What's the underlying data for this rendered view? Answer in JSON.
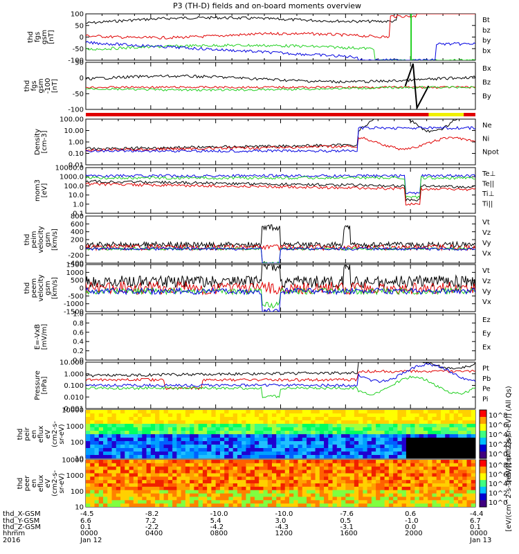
{
  "title": "P3 (TH-D) fields and on-board moments overview",
  "colors": {
    "black": "#000000",
    "red": "#e00000",
    "green": "#20d020",
    "blue": "#0000e0",
    "yellow": "#f0f000"
  },
  "chart_data": [
    {
      "type": "line",
      "name": "fgs_gsm",
      "ylabel_lines": [
        "thd",
        "fgs",
        "gsm",
        "[nT]"
      ],
      "yticks": [
        "100",
        "50",
        "0",
        "-50",
        "-100"
      ],
      "ylim": [
        -100,
        100
      ],
      "legend": [
        {
          "label": "Bt",
          "color": "black"
        },
        {
          "label": "bz",
          "color": "red"
        },
        {
          "label": "by",
          "color": "green"
        },
        {
          "label": "bx",
          "color": "blue"
        }
      ]
    },
    {
      "type": "line",
      "name": "fgs_gse",
      "ylabel_lines": [
        "thd",
        "fgs",
        "gsm",
        "-100",
        "[nT]"
      ],
      "yticks": [
        "50",
        "0",
        "-50",
        "-100"
      ],
      "ylim": [
        -125,
        75
      ],
      "legend": [
        {
          "label": "Bx",
          "color": "black"
        },
        {
          "label": "Bz",
          "color": "red"
        },
        {
          "label": "By",
          "color": "green"
        }
      ]
    },
    {
      "type": "line",
      "name": "density",
      "ylabel_lines": [
        "Density",
        "[cm-3]"
      ],
      "yticks": [
        "100.00",
        "10.00",
        "1.00",
        "0.10",
        "0.01"
      ],
      "scale": "log",
      "legend": [
        {
          "label": "Ne",
          "color": "red"
        },
        {
          "label": "Ni",
          "color": "black"
        },
        {
          "label": "Npot",
          "color": "blue"
        }
      ]
    },
    {
      "type": "line",
      "name": "temperature",
      "ylabel_lines": [
        "mom3",
        "[eV]"
      ],
      "yticks": [
        "10000.0",
        "1000.0",
        "100.0",
        "10.0",
        "1.0",
        "0.1"
      ],
      "scale": "log",
      "legend": [
        {
          "label": "Te⊥",
          "color": "red"
        },
        {
          "label": "Te||",
          "color": "black"
        },
        {
          "label": "Ti⊥",
          "color": "blue"
        },
        {
          "label": "Ti||",
          "color": "green"
        }
      ]
    },
    {
      "type": "line",
      "name": "peim_velocity",
      "ylabel_lines": [
        "thd",
        "peim",
        "velocity",
        "gsm",
        "[km/s]"
      ],
      "yticks": [
        "800",
        "600",
        "400",
        "200",
        "0",
        "-200",
        "-400"
      ],
      "ylim": [
        -400,
        800
      ],
      "legend": [
        {
          "label": "Vt",
          "color": "black"
        },
        {
          "label": "Vz",
          "color": "red"
        },
        {
          "label": "Vy",
          "color": "green"
        },
        {
          "label": "Vx",
          "color": "blue"
        }
      ]
    },
    {
      "type": "line",
      "name": "peem_velocity",
      "ylabel_lines": [
        "thd",
        "peem",
        "velocity",
        "gsm",
        "[km/s]"
      ],
      "yticks": [
        "1500",
        "1000",
        "500",
        "0",
        "-500",
        "-1000",
        "-1500"
      ],
      "ylim": [
        -1500,
        1500
      ],
      "legend": [
        {
          "label": "Vt",
          "color": "black"
        },
        {
          "label": "Vz",
          "color": "red"
        },
        {
          "label": "Vy",
          "color": "green"
        },
        {
          "label": "Vx",
          "color": "blue"
        }
      ]
    },
    {
      "type": "line",
      "name": "efield",
      "ylabel_lines": [
        "E=-VxB",
        "[mV/m]"
      ],
      "yticks": [
        "1.0",
        "0.8",
        "0.6",
        "0.4",
        "0.2",
        "0.0"
      ],
      "ylim": [
        0,
        1
      ],
      "legend": [
        {
          "label": "Ez",
          "color": "red"
        },
        {
          "label": "Ey",
          "color": "green"
        },
        {
          "label": "Ex",
          "color": "blue"
        }
      ]
    },
    {
      "type": "line",
      "name": "pressure",
      "ylabel_lines": [
        "Pressure",
        "[nPa]"
      ],
      "yticks": [
        "10.000",
        "1.000",
        "0.100",
        "0.010",
        "0.001"
      ],
      "scale": "log",
      "legend": [
        {
          "label": "Pt",
          "color": "black"
        },
        {
          "label": "Pb",
          "color": "red"
        },
        {
          "label": "Pe",
          "color": "green"
        },
        {
          "label": "Pi",
          "color": "blue"
        }
      ]
    },
    {
      "type": "heatmap",
      "name": "peir_en_eflux",
      "ylabel_lines": [
        "thd",
        "peir",
        "en",
        "eflux",
        "eV",
        "(cm2-s-",
        "sr-eV)"
      ],
      "yticks": [
        "10000",
        "1000",
        "100",
        "10"
      ],
      "scale": "log",
      "colorbar_label": "[eV/(cm^2-s-sr-eV)] (All Qs)",
      "colorbar_ticks": [
        "10^8",
        "10^6",
        "10^4",
        "10^2",
        "10^0"
      ]
    },
    {
      "type": "heatmap",
      "name": "peer_en_eflux",
      "ylabel_lines": [
        "thd",
        "peer",
        "en",
        "eflux",
        "eV",
        "(cm2-s-",
        "sr-eV)"
      ],
      "yticks": [
        "10000",
        "1000",
        "100",
        "10"
      ],
      "scale": "log",
      "colorbar_label": "[eV/(cm^2-s-sr-eV)] (All Qs)",
      "colorbar_ticks": [
        "10^8",
        "10^6",
        "10^4",
        "10^2",
        "10^0"
      ]
    }
  ],
  "xaxis": {
    "row_labels": [
      "thd_X-GSM",
      "thd_Y-GSM",
      "thd_Z-GSM",
      "hhmm",
      "2016"
    ],
    "columns": [
      {
        "x": "-4.5",
        "y": "6.6",
        "z": "0.1",
        "hhmm": "0000",
        "date": "Jan 12"
      },
      {
        "x": "-8.2",
        "y": "7.2",
        "z": "-2.2",
        "hhmm": "0400",
        "date": ""
      },
      {
        "x": "-10.0",
        "y": "5.4",
        "z": "-4.2",
        "hhmm": "0800",
        "date": ""
      },
      {
        "x": "-10.0",
        "y": "3.0",
        "z": "-4.3",
        "hhmm": "1200",
        "date": ""
      },
      {
        "x": "-7.6",
        "y": "0.5",
        "z": "-3.1",
        "hhmm": "1600",
        "date": ""
      },
      {
        "x": "0.6",
        "y": "-1.0",
        "z": "0.0",
        "hhmm": "2000",
        "date": ""
      },
      {
        "x": "-4.4",
        "y": "6.7",
        "z": "0.1",
        "hhmm": "0000",
        "date": "Jan 13"
      }
    ]
  }
}
